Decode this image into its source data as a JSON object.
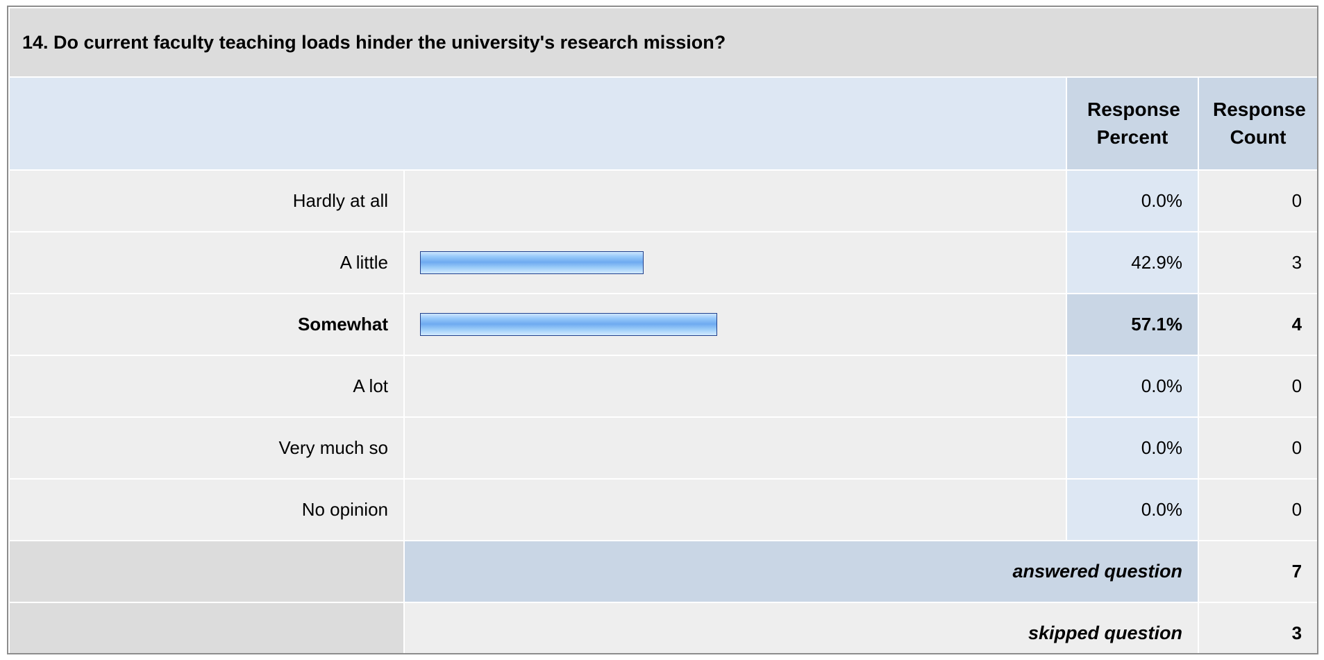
{
  "question": {
    "title": "14. Do current faculty teaching loads hinder the university's research mission?"
  },
  "headers": {
    "percent": "Response Percent",
    "count": "Response Count"
  },
  "chart_data": {
    "type": "bar",
    "orientation": "horizontal",
    "categories": [
      "Hardly at all",
      "A little",
      "Somewhat",
      "A lot",
      "Very much so",
      "No opinion"
    ],
    "values": [
      0.0,
      42.9,
      57.1,
      0.0,
      0.0,
      0.0
    ],
    "counts": [
      0,
      3,
      4,
      0,
      0,
      0
    ],
    "percent_labels": [
      "0.0%",
      "42.9%",
      "57.1%",
      "0.0%",
      "0.0%",
      "0.0%"
    ],
    "highlight_index": 2,
    "xlim": [
      0,
      100
    ],
    "bar_color": "#7fb6f2",
    "bar_border_color": "#1f3f8c"
  },
  "summary": {
    "answered_label": "answered question",
    "answered_value": "7",
    "skipped_label": "skipped question",
    "skipped_value": "3"
  }
}
